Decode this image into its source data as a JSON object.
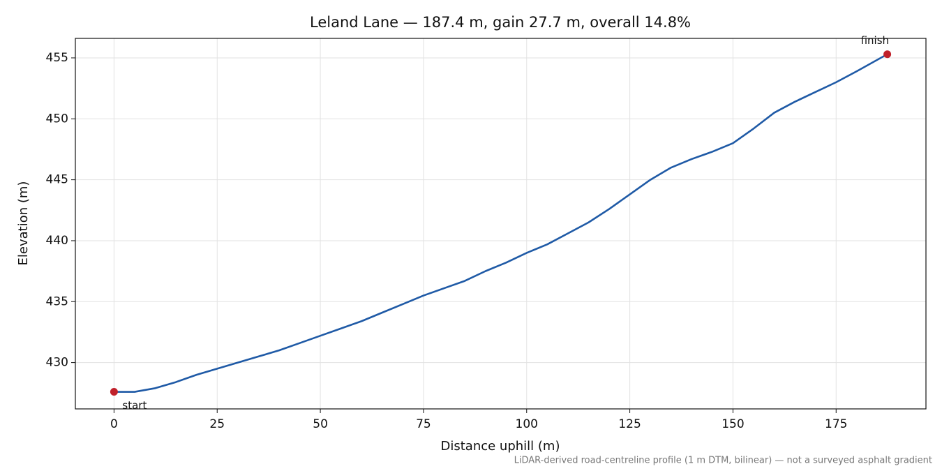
{
  "chart_data": {
    "type": "line",
    "title": "Leland Lane — 187.4 m, gain 27.7 m, overall 14.8%",
    "xlabel": "Distance uphill (m)",
    "ylabel": "Elevation (m)",
    "footnote": "LiDAR-derived road-centreline profile (1 m DTM, bilinear) — not a surveyed asphalt gradient",
    "annotations": [
      "start",
      "finish"
    ],
    "x": [
      0,
      5,
      10,
      15,
      20,
      25,
      30,
      35,
      40,
      45,
      50,
      55,
      60,
      65,
      70,
      75,
      80,
      85,
      90,
      95,
      100,
      105,
      110,
      115,
      120,
      125,
      130,
      135,
      140,
      145,
      150,
      155,
      160,
      165,
      170,
      175,
      180,
      187.4
    ],
    "values": [
      427.6,
      427.6,
      427.9,
      428.4,
      429.0,
      429.5,
      430.0,
      430.5,
      431.0,
      431.6,
      432.2,
      432.8,
      433.4,
      434.1,
      434.8,
      435.5,
      436.1,
      436.7,
      437.5,
      438.2,
      439.0,
      439.7,
      440.6,
      441.5,
      442.6,
      443.8,
      445.0,
      446.0,
      446.7,
      447.3,
      448.0,
      449.2,
      450.5,
      451.4,
      452.2,
      453.0,
      453.9,
      455.3
    ],
    "color": "#1f5aa6",
    "marker_color": "#c0202a",
    "xlim": [
      -9.37,
      196.77
    ],
    "ylim": [
      426.2,
      456.6
    ],
    "xticks": [
      0,
      25,
      50,
      75,
      100,
      125,
      150,
      175
    ],
    "yticks": [
      430,
      435,
      440,
      445,
      450,
      455
    ],
    "grid": true
  }
}
